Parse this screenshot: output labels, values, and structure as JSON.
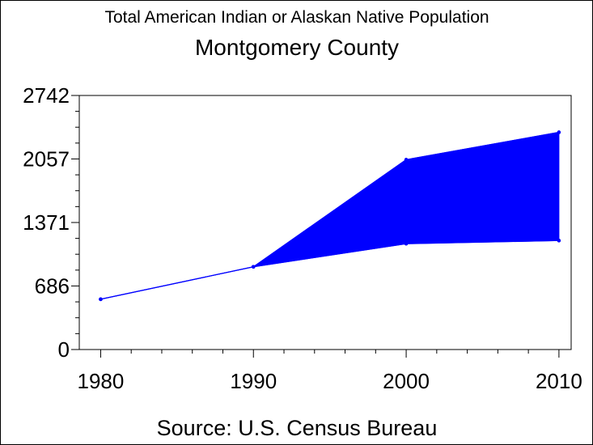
{
  "chart_data": {
    "type": "area",
    "title": "Total American Indian or Alaskan Native Population",
    "subtitle": "Montgomery County",
    "source": "Source: U.S. Census Bureau",
    "x": [
      1980,
      1990,
      2000,
      2010
    ],
    "x_tick_labels": [
      "1980",
      "1990",
      "2000",
      "2010"
    ],
    "y_tick_values": [
      0,
      686,
      1371,
      2057,
      2742
    ],
    "y_tick_labels": [
      "0",
      "686",
      "1371",
      "2057",
      "2742"
    ],
    "ylim": [
      0,
      2742
    ],
    "xlim": [
      1978.6,
      2010.8
    ],
    "series": [
      {
        "values": [
          543,
          893,
          1142,
          1176
        ]
      },
      {
        "values": [
          543,
          893,
          2049,
          2345
        ]
      }
    ],
    "fill_between_series": true,
    "grid": false,
    "colors": {
      "series": "#0000ff",
      "axis": "#000000",
      "background": "#ffffff"
    }
  }
}
